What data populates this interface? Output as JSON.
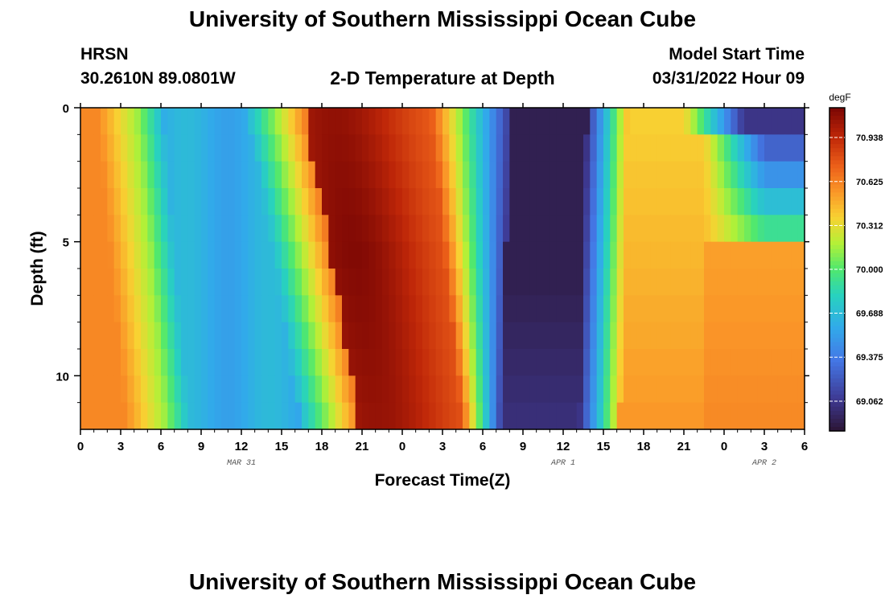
{
  "header": {
    "title": "University of Southern Mississippi Ocean Cube",
    "station": "HRSN",
    "coordinates": "30.2610N  89.0801W",
    "subtitle": "2-D Temperature at Depth",
    "model_start_label": "Model Start Time",
    "model_start_value": "03/31/2022 Hour 09"
  },
  "footer": {
    "title": "University of Southern Mississippi Ocean Cube"
  },
  "chart_data": {
    "type": "heatmap",
    "title": "2-D Temperature at Depth",
    "xlabel": "Forecast Time(Z)",
    "ylabel": "Depth (ft)",
    "x_tick_labels": [
      "0",
      "3",
      "6",
      "9",
      "12",
      "15",
      "18",
      "21",
      "0",
      "3",
      "6",
      "9",
      "12",
      "15",
      "18",
      "21",
      "0",
      "3",
      "6"
    ],
    "day_labels": [
      {
        "label": "MAR 31",
        "hour_index": 12
      },
      {
        "label": "APR 1",
        "hour_index": 36
      },
      {
        "label": "APR 2",
        "hour_index": 51
      }
    ],
    "x_range_hours": [
      0,
      54
    ],
    "y_tick_labels": [
      "0",
      "5",
      "10"
    ],
    "ylim": [
      0,
      12
    ],
    "y_reversed": true,
    "colorbar": {
      "unit": "degF",
      "ticks": [
        "70.938",
        "70.625",
        "70.312",
        "70.000",
        "69.688",
        "69.375",
        "69.062"
      ],
      "tick_values": [
        70.938,
        70.625,
        70.312,
        70.0,
        69.688,
        69.375,
        69.062
      ],
      "vmin": 68.85,
      "vmax": 71.15
    },
    "grid": false
  }
}
